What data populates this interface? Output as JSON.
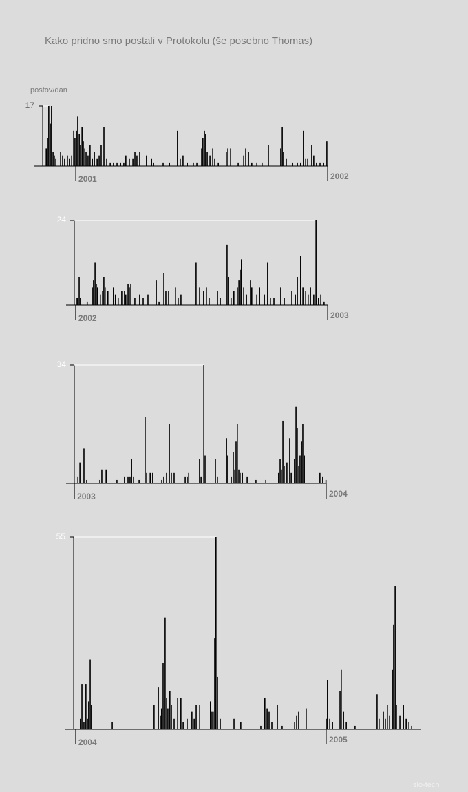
{
  "watermark": "slo-tech",
  "chart_data": [
    {
      "type": "bar",
      "title": "Kako pridno smo postali v Protokolu (še posebno Thomas)",
      "y_label": "postov/dan",
      "color": "#000000",
      "xlim": [
        2000.836,
        2002.0
      ],
      "xticks": [
        2001,
        2002
      ],
      "ylim": [
        0,
        17
      ],
      "yticks": [
        17
      ],
      "x": [
        2000.883,
        2000.888,
        2000.893,
        2000.899,
        2000.904,
        2000.91,
        2000.915,
        2000.921,
        2000.94,
        2000.948,
        2000.956,
        2000.967,
        2000.975,
        2000.984,
        2000.992,
        2000.997,
        2001.003,
        2001.008,
        2001.014,
        2001.019,
        2001.025,
        2001.03,
        2001.036,
        2001.041,
        2001.049,
        2001.057,
        2001.066,
        2001.074,
        2001.085,
        2001.093,
        2001.101,
        2001.112,
        2001.123,
        2001.137,
        2001.15,
        2001.164,
        2001.178,
        2001.191,
        2001.199,
        2001.213,
        2001.227,
        2001.235,
        2001.243,
        2001.254,
        2001.281,
        2001.301,
        2001.309,
        2001.347,
        2001.372,
        2001.404,
        2001.415,
        2001.426,
        2001.443,
        2001.467,
        2001.481,
        2001.5,
        2001.505,
        2001.511,
        2001.516,
        2001.522,
        2001.533,
        2001.544,
        2001.552,
        2001.566,
        2001.598,
        2001.604,
        2001.615,
        2001.645,
        2001.667,
        2001.675,
        2001.686,
        2001.699,
        2001.719,
        2001.74,
        2001.765,
        2001.814,
        2001.82,
        2001.825,
        2001.836,
        2001.861,
        2001.88,
        2001.893,
        2001.904,
        2001.913,
        2001.921,
        2001.937,
        2001.945,
        2001.956,
        2001.97,
        2001.984,
        2001.997
      ],
      "values": [
        5,
        8,
        17,
        12,
        17,
        4,
        3,
        2,
        4,
        3,
        2,
        3,
        2,
        3,
        10,
        8,
        10,
        14,
        9,
        6,
        11,
        7,
        5,
        4,
        3,
        6,
        2,
        4,
        2,
        3,
        6,
        11,
        2,
        1,
        1,
        1,
        1,
        1,
        3,
        2,
        2,
        4,
        3,
        4,
        3,
        2,
        1,
        1,
        1,
        10,
        2,
        3,
        1,
        1,
        1,
        5,
        8,
        10,
        9,
        4,
        3,
        5,
        2,
        1,
        4,
        5,
        5,
        1,
        3,
        5,
        4,
        1,
        1,
        1,
        6,
        5,
        11,
        4,
        2,
        1,
        1,
        1,
        10,
        2,
        2,
        6,
        3,
        1,
        1,
        1,
        7
      ]
    },
    {
      "type": "bar",
      "color": "#000000",
      "xlim": [
        2001.962,
        2003.0
      ],
      "xticks": [
        2002,
        2003
      ],
      "ylim": [
        0,
        24
      ],
      "yticks": [
        24
      ],
      "x": [
        2002.003,
        2002.008,
        2002.014,
        2002.019,
        2002.046,
        2002.066,
        2002.071,
        2002.077,
        2002.082,
        2002.087,
        2002.098,
        2002.107,
        2002.112,
        2002.117,
        2002.128,
        2002.15,
        2002.158,
        2002.169,
        2002.183,
        2002.194,
        2002.199,
        2002.208,
        2002.213,
        2002.219,
        2002.235,
        2002.254,
        2002.268,
        2002.287,
        2002.32,
        2002.331,
        2002.35,
        2002.358,
        2002.369,
        2002.396,
        2002.407,
        2002.418,
        2002.478,
        2002.492,
        2002.508,
        2002.519,
        2002.53,
        2002.563,
        2002.574,
        2002.601,
        2002.607,
        2002.617,
        2002.628,
        2002.642,
        2002.648,
        2002.653,
        2002.658,
        2002.667,
        2002.678,
        2002.694,
        2002.699,
        2002.719,
        2002.73,
        2002.749,
        2002.762,
        2002.773,
        2002.787,
        2002.814,
        2002.828,
        2002.858,
        2002.872,
        2002.88,
        2002.893,
        2002.902,
        2002.913,
        2002.923,
        2002.932,
        2002.945,
        2002.954,
        2002.964,
        2002.973,
        2002.986
      ],
      "values": [
        2,
        2,
        8,
        2,
        1,
        5,
        7,
        12,
        6,
        5,
        3,
        4,
        8,
        5,
        4,
        5,
        3,
        2,
        4,
        4,
        3,
        6,
        5,
        6,
        2,
        3,
        2,
        3,
        7,
        1,
        9,
        4,
        4,
        5,
        2,
        3,
        12,
        5,
        4,
        5,
        2,
        4,
        2,
        17,
        8,
        2,
        4,
        5,
        7,
        10,
        13,
        5,
        3,
        7,
        5,
        3,
        5,
        3,
        12,
        2,
        2,
        5,
        2,
        4,
        3,
        8,
        14,
        5,
        4,
        3,
        5,
        3,
        24,
        2,
        3,
        1
      ]
    },
    {
      "type": "bar",
      "color": "#000000",
      "xlim": [
        2002.967,
        2004.0
      ],
      "xticks": [
        2003,
        2004
      ],
      "ylim": [
        0,
        34
      ],
      "yticks": [
        34
      ],
      "x": [
        2003.014,
        2003.022,
        2003.038,
        2003.049,
        2003.101,
        2003.109,
        2003.126,
        2003.169,
        2003.199,
        2003.213,
        2003.221,
        2003.227,
        2003.235,
        2003.257,
        2003.281,
        2003.287,
        2003.301,
        2003.311,
        2003.347,
        2003.355,
        2003.366,
        2003.377,
        2003.385,
        2003.396,
        2003.44,
        2003.448,
        2003.454,
        2003.497,
        2003.503,
        2003.514,
        2003.519,
        2003.56,
        2003.568,
        2003.604,
        2003.609,
        2003.623,
        2003.631,
        2003.637,
        2003.642,
        2003.647,
        2003.653,
        2003.658,
        2003.667,
        2003.686,
        2003.721,
        2003.76,
        2003.811,
        2003.817,
        2003.822,
        2003.828,
        2003.833,
        2003.844,
        2003.855,
        2003.861,
        2003.874,
        2003.88,
        2003.885,
        2003.891,
        2003.896,
        2003.902,
        2003.907,
        2003.913,
        2003.975,
        2003.986,
        2003.999
      ],
      "values": [
        2,
        6,
        10,
        1,
        1,
        4,
        4,
        1,
        2,
        2,
        2,
        7,
        2,
        1,
        19,
        3,
        3,
        3,
        1,
        2,
        3,
        17,
        3,
        3,
        2,
        2,
        3,
        7,
        2,
        34,
        8,
        7,
        2,
        13,
        8,
        2,
        9,
        4,
        12,
        17,
        4,
        3,
        3,
        2,
        1,
        1,
        3,
        7,
        4,
        18,
        5,
        6,
        13,
        3,
        7,
        22,
        16,
        5,
        8,
        12,
        17,
        8,
        3,
        2,
        1
      ]
    },
    {
      "type": "bar",
      "color": "#000000",
      "xlim": [
        2003.959,
        2005.379
      ],
      "xticks": [
        2004,
        2005
      ],
      "ylim": [
        0,
        55
      ],
      "yticks": [
        55
      ],
      "x": [
        2004.019,
        2004.025,
        2004.033,
        2004.041,
        2004.047,
        2004.052,
        2004.058,
        2004.063,
        2004.146,
        2004.313,
        2004.33,
        2004.338,
        2004.343,
        2004.349,
        2004.357,
        2004.363,
        2004.368,
        2004.376,
        2004.382,
        2004.393,
        2004.407,
        2004.42,
        2004.429,
        2004.445,
        2004.464,
        2004.473,
        2004.481,
        2004.495,
        2004.538,
        2004.544,
        2004.549,
        2004.555,
        2004.56,
        2004.566,
        2004.577,
        2004.632,
        2004.659,
        2004.739,
        2004.755,
        2004.764,
        2004.772,
        2004.783,
        2004.805,
        2004.824,
        2004.874,
        2004.882,
        2004.89,
        2004.92,
        2005.0,
        2005.005,
        2005.014,
        2005.025,
        2005.055,
        2005.06,
        2005.069,
        2005.08,
        2005.115,
        2005.203,
        2005.211,
        2005.228,
        2005.236,
        2005.244,
        2005.253,
        2005.264,
        2005.269,
        2005.275,
        2005.28,
        2005.294,
        2005.308,
        2005.319,
        2005.33,
        2005.341
      ],
      "values": [
        3,
        13,
        2,
        13,
        3,
        8,
        20,
        7,
        2,
        7,
        12,
        4,
        6,
        19,
        32,
        9,
        6,
        11,
        7,
        3,
        9,
        9,
        2,
        3,
        5,
        3,
        7,
        7,
        8,
        5,
        5,
        26,
        55,
        15,
        3,
        3,
        2,
        1,
        9,
        6,
        5,
        2,
        7,
        1,
        2,
        4,
        5,
        6,
        3,
        14,
        3,
        2,
        11,
        17,
        5,
        2,
        1,
        10,
        3,
        5,
        3,
        7,
        4,
        17,
        30,
        41,
        7,
        4,
        7,
        3,
        2,
        1
      ]
    }
  ]
}
